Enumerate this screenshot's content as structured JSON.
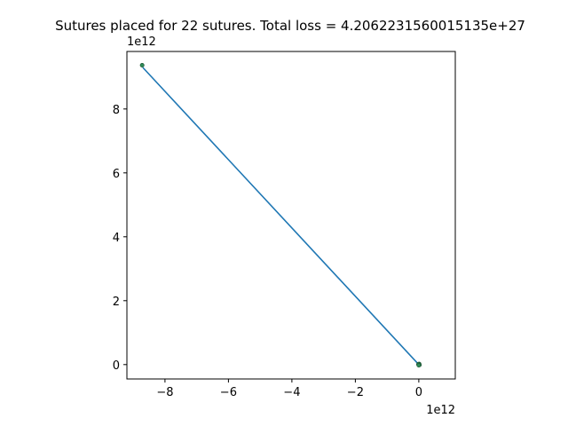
{
  "chart_data": {
    "type": "line",
    "title": "Sutures placed for 22 sutures. Total loss = 4.2062231560015135e+27",
    "xlabel": "",
    "ylabel": "",
    "x_offset_label": "1e12",
    "y_offset_label": "1e12",
    "xlim": [
      -9.2,
      1.15
    ],
    "ylim": [
      -0.45,
      9.8
    ],
    "x_ticks": [
      -8,
      -6,
      -4,
      -2,
      0
    ],
    "y_ticks": [
      0,
      2,
      4,
      6,
      8
    ],
    "x_tick_labels": [
      "−8",
      "−6",
      "−4",
      "−2",
      "0"
    ],
    "y_tick_labels": [
      "0",
      "2",
      "4",
      "6",
      "8"
    ],
    "grid": false,
    "line_color": "#1f77b4",
    "point_color": "#2e8b57",
    "point_edge_color": "#1a4d2e",
    "series": [
      {
        "x": [
          -8.7,
          0.0
        ],
        "y": [
          9.3,
          0.0
        ]
      }
    ],
    "points": [
      {
        "x": -8.72,
        "y": 9.37
      },
      {
        "x": 0.0,
        "y": 0.0
      },
      {
        "x": 0.01,
        "y": 0.02
      },
      {
        "x": -0.01,
        "y": 0.01
      },
      {
        "x": 0.02,
        "y": -0.01
      },
      {
        "x": 0.0,
        "y": -0.02
      }
    ]
  }
}
